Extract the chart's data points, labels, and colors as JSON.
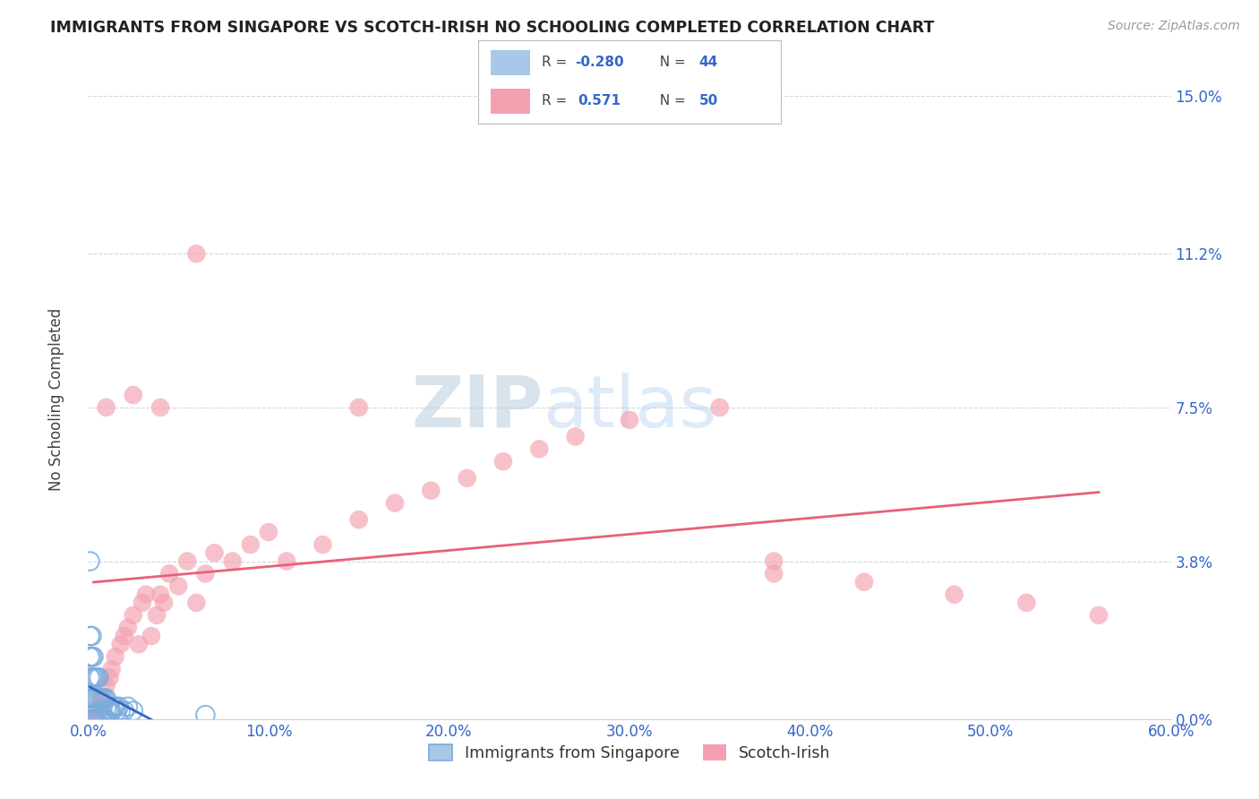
{
  "title": "IMMIGRANTS FROM SINGAPORE VS SCOTCH-IRISH NO SCHOOLING COMPLETED CORRELATION CHART",
  "source": "Source: ZipAtlas.com",
  "xlabel_ticks": [
    "0.0%",
    "10.0%",
    "20.0%",
    "30.0%",
    "40.0%",
    "50.0%",
    "60.0%"
  ],
  "xlabel_vals": [
    0.0,
    0.1,
    0.2,
    0.3,
    0.4,
    0.5,
    0.6
  ],
  "ylabel_ticks": [
    "0.0%",
    "3.8%",
    "7.5%",
    "11.2%",
    "15.0%"
  ],
  "ylabel_vals": [
    0.0,
    0.038,
    0.075,
    0.112,
    0.15
  ],
  "ylabel_label": "No Schooling Completed",
  "legend_label1": "Immigrants from Singapore",
  "legend_label2": "Scotch-Irish",
  "R1": -0.28,
  "N1": 44,
  "R2": 0.571,
  "N2": 50,
  "watermark_zip": "ZIP",
  "watermark_atlas": "atlas",
  "color_blue": "#7AABDC",
  "color_blue_fill": "#A8C8E8",
  "color_pink": "#F4A0B0",
  "color_blue_line": "#3366BB",
  "color_pink_line": "#E8607A",
  "singapore_x": [
    0.001,
    0.001,
    0.001,
    0.001,
    0.001,
    0.002,
    0.002,
    0.002,
    0.002,
    0.002,
    0.003,
    0.003,
    0.003,
    0.003,
    0.004,
    0.004,
    0.004,
    0.005,
    0.005,
    0.005,
    0.006,
    0.006,
    0.006,
    0.007,
    0.007,
    0.008,
    0.008,
    0.009,
    0.009,
    0.01,
    0.01,
    0.011,
    0.012,
    0.013,
    0.014,
    0.015,
    0.016,
    0.017,
    0.018,
    0.02,
    0.022,
    0.025,
    0.065,
    0.001
  ],
  "singapore_y": [
    0.0,
    0.005,
    0.01,
    0.015,
    0.02,
    0.0,
    0.005,
    0.01,
    0.015,
    0.02,
    0.0,
    0.005,
    0.01,
    0.015,
    0.0,
    0.005,
    0.01,
    0.0,
    0.005,
    0.01,
    0.0,
    0.005,
    0.01,
    0.0,
    0.005,
    0.0,
    0.005,
    0.0,
    0.005,
    0.0,
    0.005,
    0.002,
    0.002,
    0.002,
    0.003,
    0.003,
    0.002,
    0.003,
    0.002,
    0.002,
    0.003,
    0.002,
    0.001,
    0.038
  ],
  "scotchirish_x": [
    0.003,
    0.005,
    0.007,
    0.008,
    0.01,
    0.012,
    0.013,
    0.015,
    0.018,
    0.02,
    0.022,
    0.025,
    0.028,
    0.03,
    0.032,
    0.035,
    0.038,
    0.04,
    0.042,
    0.045,
    0.05,
    0.055,
    0.06,
    0.065,
    0.07,
    0.08,
    0.09,
    0.1,
    0.11,
    0.13,
    0.15,
    0.17,
    0.19,
    0.21,
    0.23,
    0.25,
    0.27,
    0.3,
    0.35,
    0.38,
    0.15,
    0.38,
    0.43,
    0.48,
    0.52,
    0.56,
    0.01,
    0.025,
    0.04,
    0.06
  ],
  "scotchirish_y": [
    0.0,
    0.002,
    0.005,
    0.003,
    0.008,
    0.01,
    0.012,
    0.015,
    0.018,
    0.02,
    0.022,
    0.025,
    0.018,
    0.028,
    0.03,
    0.02,
    0.025,
    0.03,
    0.028,
    0.035,
    0.032,
    0.038,
    0.028,
    0.035,
    0.04,
    0.038,
    0.042,
    0.045,
    0.038,
    0.042,
    0.048,
    0.052,
    0.055,
    0.058,
    0.062,
    0.065,
    0.068,
    0.072,
    0.075,
    0.038,
    0.075,
    0.035,
    0.033,
    0.03,
    0.028,
    0.025,
    0.075,
    0.078,
    0.075,
    0.112
  ],
  "xlim": [
    0.0,
    0.6
  ],
  "ylim": [
    0.0,
    0.15
  ],
  "background": "#FFFFFF",
  "grid_color": "#CCCCCC"
}
